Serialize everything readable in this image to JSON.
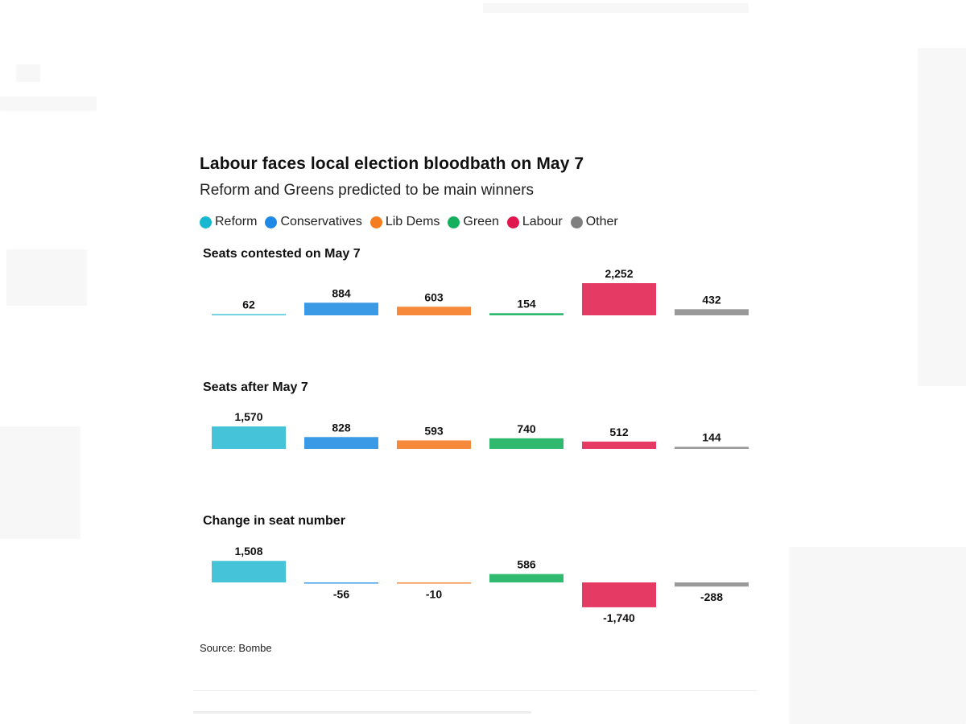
{
  "title": "Labour faces local election bloodbath on May 7",
  "subtitle": "Reform and Greens predicted to be main winners",
  "legend": [
    {
      "label": "Reform",
      "color": "#17b7d0"
    },
    {
      "label": "Conservatives",
      "color": "#1e88e5"
    },
    {
      "label": "Lib Dems",
      "color": "#f57c1f"
    },
    {
      "label": "Green",
      "color": "#12b05c"
    },
    {
      "label": "Labour",
      "color": "#e0174f"
    },
    {
      "label": "Other",
      "color": "#808080"
    }
  ],
  "chart_data": [
    {
      "type": "bar",
      "title": "Seats contested on May 7",
      "categories": [
        "Reform",
        "Conservatives",
        "Lib Dems",
        "Green",
        "Labour",
        "Other"
      ],
      "values": [
        62,
        884,
        603,
        154,
        2252,
        432
      ],
      "value_labels": [
        "62",
        "884",
        "603",
        "154",
        "2,252",
        "432"
      ],
      "colors": [
        "#45c4d9",
        "#3a9ae6",
        "#f7893a",
        "#2fba6f",
        "#e43a64",
        "#999999"
      ]
    },
    {
      "type": "bar",
      "title": "Seats after May 7",
      "categories": [
        "Reform",
        "Conservatives",
        "Lib Dems",
        "Green",
        "Labour",
        "Other"
      ],
      "values": [
        1570,
        828,
        593,
        740,
        512,
        144
      ],
      "value_labels": [
        "1,570",
        "828",
        "593",
        "740",
        "512",
        "144"
      ],
      "colors": [
        "#45c4d9",
        "#3a9ae6",
        "#f7893a",
        "#2fba6f",
        "#e43a64",
        "#999999"
      ]
    },
    {
      "type": "bar",
      "title": "Change in seat number",
      "categories": [
        "Reform",
        "Conservatives",
        "Lib Dems",
        "Green",
        "Labour",
        "Other"
      ],
      "values": [
        1508,
        -56,
        -10,
        586,
        -1740,
        -288
      ],
      "value_labels": [
        "1,508",
        "-56",
        "-10",
        "586",
        "-1,740",
        "-288"
      ],
      "colors": [
        "#45c4d9",
        "#3a9ae6",
        "#f7893a",
        "#2fba6f",
        "#e43a64",
        "#999999"
      ]
    }
  ],
  "source": "Source: Bombe"
}
